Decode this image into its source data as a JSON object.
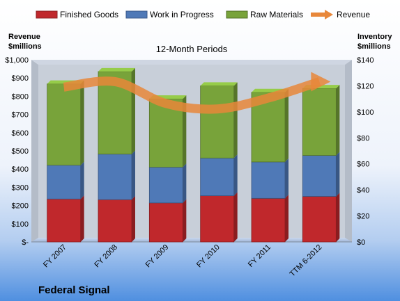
{
  "chart_data": {
    "type": "bar",
    "subtitle": "12-Month Periods",
    "company": "Federal Signal",
    "left_axis": {
      "label_line1": "Revenue",
      "label_line2": "$millions",
      "range": [
        0,
        1000
      ],
      "step": 100,
      "tick_labels": [
        "$-",
        "$100",
        "$200",
        "$300",
        "$400",
        "$500",
        "$600",
        "$700",
        "$800",
        "$900",
        "$1,000"
      ]
    },
    "right_axis": {
      "label_line1": "Inventory",
      "label_line2": "$millions",
      "range": [
        0,
        140
      ],
      "step": 20,
      "tick_labels": [
        "$0",
        "$20",
        "$40",
        "$60",
        "$80",
        "$100",
        "$120",
        "$140"
      ]
    },
    "categories": [
      "FY 2007",
      "FY 2008",
      "FY 2009",
      "FY 2010",
      "FY 2011",
      "TTM 6-2012"
    ],
    "stacked": true,
    "series": [
      {
        "name": "Finished Goods",
        "axis": "right",
        "type": "bar",
        "color": "#c0282c",
        "values": [
          33,
          32.5,
          30,
          35.5,
          33.5,
          35
        ]
      },
      {
        "name": "Work in Progress",
        "axis": "right",
        "type": "bar",
        "color": "#4f79b7",
        "values": [
          26,
          35,
          27.5,
          29,
          28,
          31.5
        ]
      },
      {
        "name": "Raw Materials",
        "axis": "right",
        "type": "bar",
        "color": "#78a33a",
        "values": [
          62.5,
          63.5,
          52.5,
          55.5,
          53.5,
          51.5
        ]
      },
      {
        "name": "Revenue",
        "axis": "left",
        "type": "line",
        "color": "#e8873a",
        "values": [
          850,
          880,
          760,
          730,
          790,
          880
        ]
      }
    ],
    "legend_position": "top",
    "grid": false
  }
}
